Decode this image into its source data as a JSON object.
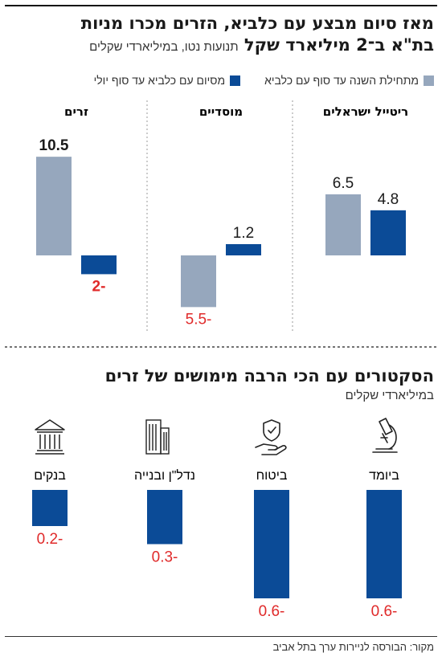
{
  "header": {
    "title_line1": "מאז סיום מבצע עם כלביא, הזרים מכרו מניות",
    "title_line2": "בת\"א ב־2 מיליארד שקל",
    "subtitle": "תנועות נטו, במיליארדי שקלים"
  },
  "legend": {
    "item1": "מתחילת השנה עד סוף עם כלביא",
    "item2": "מסיום עם כלביא עד סוף יולי"
  },
  "colors": {
    "light": "#96a7bd",
    "dark": "#0b4b97",
    "negative_label": "#e02a2a",
    "divider": "#999999"
  },
  "chart_data": [
    {
      "type": "bar",
      "title": "מאז סיום מבצע עם כלביא, הזרים מכרו מניות בת\"א ב־2 מיליארד שקל",
      "subtitle": "תנועות נטו, במיליארדי שקלים",
      "categories": [
        "ריטייל ישראלים",
        "מוסדיים",
        "זרים"
      ],
      "series": [
        {
          "name": "מתחילת השנה עד סוף עם כלביא",
          "values": [
            6.5,
            -5.5,
            10.5
          ],
          "labels": [
            "6.5",
            "-5.5",
            "10.5"
          ]
        },
        {
          "name": "מסיום עם כלביא עד סוף יולי",
          "values": [
            4.8,
            1.2,
            -2
          ],
          "labels": [
            "4.8",
            "1.2",
            "-2"
          ]
        }
      ],
      "grid": false
    },
    {
      "type": "bar",
      "title": "הסקטורים עם הכי הרבה מימושים של זרים",
      "subtitle": "במיליארדי שקלים",
      "categories": [
        "ביומד",
        "ביטוח",
        "נדל\"ן ובנייה",
        "בנקים"
      ],
      "icons": [
        "microscope-icon",
        "insurance-hand-icon",
        "building-icon",
        "bank-icon"
      ],
      "values": [
        -0.6,
        -0.6,
        -0.3,
        -0.2
      ],
      "labels": [
        "-0.6",
        "-0.6",
        "-0.3",
        "-0.2"
      ],
      "grid": false
    }
  ],
  "section2": {
    "title": "הסקטורים עם הכי הרבה מימושים של זרים",
    "subtitle": "במיליארדי שקלים"
  },
  "source": "מקור: הבורסה לניירות ערך בתל אביב"
}
